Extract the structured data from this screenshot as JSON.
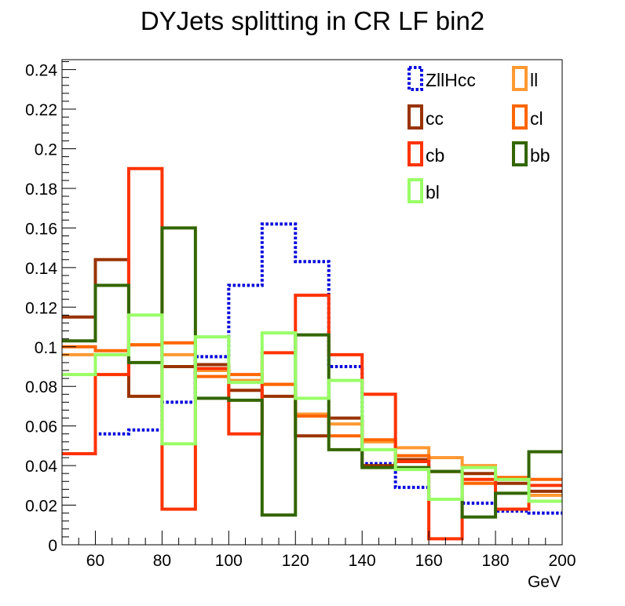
{
  "chart_data": {
    "type": "step-histogram",
    "title": "DYJets splitting in CR LF bin2",
    "xlabel": "GeV",
    "ylabel": "",
    "xlim": [
      50,
      200
    ],
    "ylim": [
      0,
      0.245
    ],
    "bin_edges": [
      50,
      60,
      70,
      80,
      90,
      100,
      110,
      120,
      130,
      140,
      150,
      160,
      170,
      180,
      190,
      200
    ],
    "x_ticks": [
      "60",
      "80",
      "100",
      "120",
      "140",
      "160",
      "180",
      "200"
    ],
    "y_ticks": [
      "0",
      "0.02",
      "0.04",
      "0.06",
      "0.08",
      "0.1",
      "0.12",
      "0.14",
      "0.16",
      "0.18",
      "0.2",
      "0.22",
      "0.24"
    ],
    "legend_position": "top-right",
    "series": [
      {
        "name": "ZllHcc",
        "color": "#0000dd",
        "dashed": true,
        "values": [
          0.046,
          0.056,
          0.058,
          0.072,
          0.095,
          0.131,
          0.162,
          0.143,
          0.09,
          0.041,
          0.029,
          0.023,
          0.021,
          0.017,
          0.016
        ]
      },
      {
        "name": "ll",
        "color": "#ff9933",
        "dashed": false,
        "values": [
          0.096,
          0.096,
          0.101,
          0.096,
          0.088,
          0.083,
          0.081,
          0.066,
          0.061,
          0.052,
          0.049,
          0.044,
          0.04,
          0.033,
          0.025
        ]
      },
      {
        "name": "cc",
        "color": "#993300",
        "dashed": false,
        "values": [
          0.115,
          0.144,
          0.075,
          0.09,
          0.091,
          0.078,
          0.075,
          0.055,
          0.064,
          0.04,
          0.043,
          0.037,
          0.036,
          0.031,
          0.027
        ]
      },
      {
        "name": "cl",
        "color": "#ff6600",
        "dashed": false,
        "values": [
          0.1,
          0.098,
          0.101,
          0.102,
          0.085,
          0.086,
          0.081,
          0.065,
          0.055,
          0.053,
          0.045,
          0.037,
          0.031,
          0.034,
          0.033
        ]
      },
      {
        "name": "cb",
        "color": "#ff3300",
        "dashed": false,
        "values": [
          0.046,
          0.086,
          0.19,
          0.018,
          0.089,
          0.056,
          0.097,
          0.126,
          0.096,
          0.076,
          0.042,
          0.003,
          0.033,
          0.018,
          0.03
        ]
      },
      {
        "name": "bb",
        "color": "#336600",
        "dashed": false,
        "values": [
          0.103,
          0.131,
          0.092,
          0.16,
          0.074,
          0.073,
          0.015,
          0.106,
          0.048,
          0.039,
          0.039,
          0.037,
          0.014,
          0.026,
          0.047
        ]
      },
      {
        "name": "bl",
        "color": "#99ff66",
        "dashed": false,
        "values": [
          0.086,
          0.096,
          0.116,
          0.051,
          0.105,
          0.082,
          0.107,
          0.074,
          0.083,
          0.048,
          0.038,
          0.023,
          0.039,
          0.033,
          0.022
        ]
      }
    ]
  }
}
